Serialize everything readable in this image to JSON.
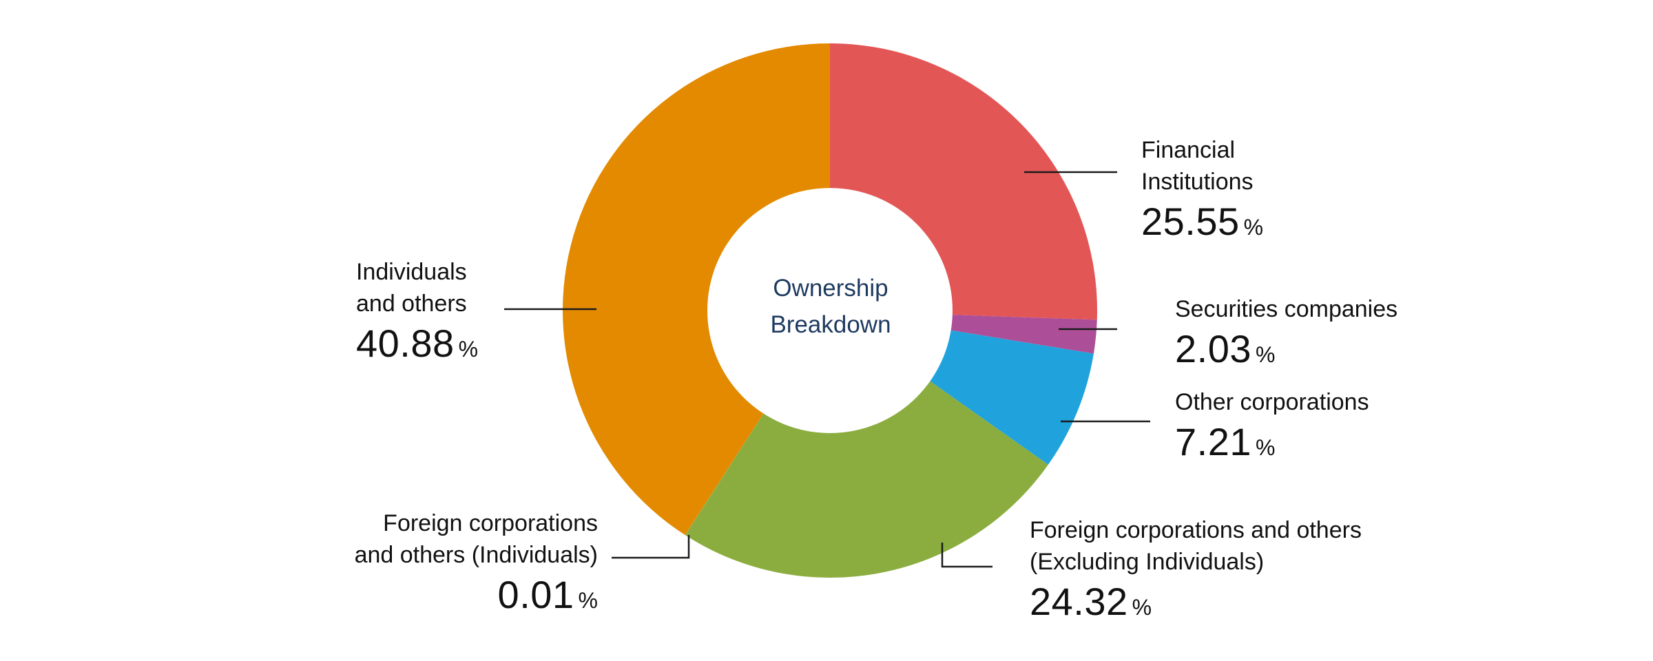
{
  "chart_data": {
    "type": "pie",
    "subtype": "donut",
    "title": "Ownership Breakdown",
    "start_angle": "12 o'clock, clockwise",
    "unit": "%",
    "categories": [
      "Financial Institutions",
      "Securities companies",
      "Other corporations",
      "Foreign corporations and others (Excluding Individuals)",
      "Foreign corporations and others (Individuals)",
      "Individuals and others"
    ],
    "values": [
      25.55,
      2.03,
      7.21,
      24.32,
      0.01,
      40.88
    ],
    "colors": [
      "#e35656",
      "#ad4f98",
      "#20a3dc",
      "#8bad3f",
      "#8bad3f",
      "#e38a00"
    ]
  },
  "center": {
    "line1": "Ownership",
    "line2": "Breakdown"
  },
  "labels": {
    "financial": {
      "line1": "Financial",
      "line2": "Institutions",
      "value": "25.55",
      "unit": "%"
    },
    "securities": {
      "line1": "Securities companies",
      "value": "2.03",
      "unit": "%"
    },
    "other_corp": {
      "line1": "Other corporations",
      "value": "7.21",
      "unit": "%"
    },
    "foreign_excl": {
      "line1": "Foreign corporations and others",
      "line2": "(Excluding Individuals)",
      "value": "24.32",
      "unit": "%"
    },
    "foreign_indiv": {
      "line1": "Foreign corporations",
      "line2": "and others (Individuals)",
      "value": "0.01",
      "unit": "%"
    },
    "individuals": {
      "line1": "Individuals",
      "line2": "and others",
      "value": "40.88",
      "unit": "%"
    }
  }
}
